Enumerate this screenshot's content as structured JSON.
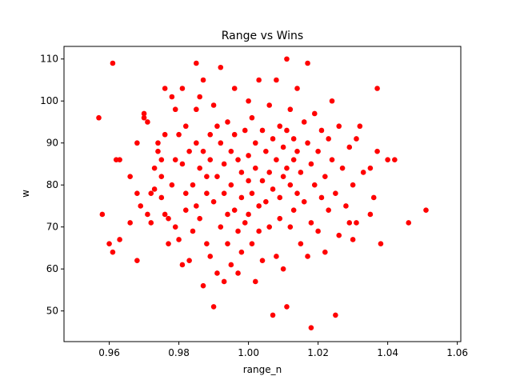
{
  "chart_data": {
    "type": "scatter",
    "title": "Range vs Wins",
    "xlabel": "range_n",
    "ylabel": "w",
    "xlim": [
      0.947,
      1.061
    ],
    "ylim": [
      42.7,
      113.0
    ],
    "xticks": [
      0.96,
      0.98,
      1.0,
      1.02,
      1.04,
      1.06
    ],
    "xtick_labels": [
      "0.96",
      "0.98",
      "1.00",
      "1.02",
      "1.04",
      "1.06"
    ],
    "yticks": [
      50,
      60,
      70,
      80,
      90,
      100,
      110
    ],
    "ytick_labels": [
      "50",
      "60",
      "70",
      "80",
      "90",
      "100",
      "110"
    ],
    "grid": false,
    "marker_color": "#ff0000",
    "series": [
      {
        "points": [
          [
            0.957,
            96
          ],
          [
            0.958,
            73
          ],
          [
            0.96,
            66
          ],
          [
            0.961,
            109
          ],
          [
            0.962,
            86
          ],
          [
            0.961,
            64
          ],
          [
            0.963,
            86
          ],
          [
            0.963,
            67
          ],
          [
            0.966,
            82
          ],
          [
            0.966,
            71
          ],
          [
            0.968,
            90
          ],
          [
            0.968,
            62
          ],
          [
            0.968,
            78
          ],
          [
            0.969,
            75
          ],
          [
            0.97,
            97
          ],
          [
            0.97,
            96
          ],
          [
            0.971,
            95
          ],
          [
            0.971,
            73
          ],
          [
            0.972,
            78
          ],
          [
            0.972,
            71
          ],
          [
            0.973,
            84
          ],
          [
            0.973,
            79
          ],
          [
            0.974,
            90
          ],
          [
            0.974,
            88
          ],
          [
            0.975,
            82
          ],
          [
            0.975,
            86
          ],
          [
            0.975,
            77
          ],
          [
            0.976,
            103
          ],
          [
            0.976,
            92
          ],
          [
            0.976,
            73
          ],
          [
            0.977,
            66
          ],
          [
            0.977,
            72
          ],
          [
            0.978,
            80
          ],
          [
            0.978,
            101
          ],
          [
            0.979,
            98
          ],
          [
            0.979,
            86
          ],
          [
            0.979,
            70
          ],
          [
            0.98,
            92
          ],
          [
            0.98,
            67
          ],
          [
            0.981,
            103
          ],
          [
            0.981,
            85
          ],
          [
            0.981,
            61
          ],
          [
            0.982,
            94
          ],
          [
            0.982,
            78
          ],
          [
            0.982,
            74
          ],
          [
            0.983,
            88
          ],
          [
            0.983,
            62
          ],
          [
            0.984,
            80
          ],
          [
            0.984,
            69
          ],
          [
            0.985,
            98
          ],
          [
            0.985,
            109
          ],
          [
            0.985,
            90
          ],
          [
            0.985,
            75
          ],
          [
            0.986,
            101
          ],
          [
            0.986,
            84
          ],
          [
            0.986,
            72
          ],
          [
            0.987,
            105
          ],
          [
            0.987,
            88
          ],
          [
            0.987,
            56
          ],
          [
            0.988,
            82
          ],
          [
            0.988,
            78
          ],
          [
            0.988,
            66
          ],
          [
            0.989,
            92
          ],
          [
            0.989,
            86
          ],
          [
            0.989,
            63
          ],
          [
            0.99,
            51
          ],
          [
            0.99,
            99
          ],
          [
            0.99,
            76
          ],
          [
            0.991,
            94
          ],
          [
            0.991,
            82
          ],
          [
            0.991,
            59
          ],
          [
            0.992,
            108
          ],
          [
            0.992,
            90
          ],
          [
            0.992,
            70
          ],
          [
            0.993,
            85
          ],
          [
            0.993,
            78
          ],
          [
            0.993,
            57
          ],
          [
            0.994,
            95
          ],
          [
            0.994,
            73
          ],
          [
            0.994,
            66
          ],
          [
            0.995,
            88
          ],
          [
            0.995,
            80
          ],
          [
            0.995,
            61
          ],
          [
            0.996,
            103
          ],
          [
            0.996,
            92
          ],
          [
            0.996,
            74
          ],
          [
            0.997,
            86
          ],
          [
            0.997,
            59
          ],
          [
            0.997,
            69
          ],
          [
            0.998,
            83
          ],
          [
            0.998,
            77
          ],
          [
            0.998,
            64
          ],
          [
            0.999,
            93
          ],
          [
            0.999,
            71
          ],
          [
            1.0,
            100
          ],
          [
            1.0,
            87
          ],
          [
            1.0,
            81
          ],
          [
            1.0,
            73
          ],
          [
            1.001,
            96
          ],
          [
            1.001,
            78
          ],
          [
            1.001,
            66
          ],
          [
            1.002,
            90
          ],
          [
            1.002,
            57
          ],
          [
            1.002,
            84
          ],
          [
            1.003,
            105
          ],
          [
            1.003,
            75
          ],
          [
            1.003,
            69
          ],
          [
            1.004,
            93
          ],
          [
            1.004,
            81
          ],
          [
            1.004,
            62
          ],
          [
            1.005,
            88
          ],
          [
            1.005,
            76
          ],
          [
            1.006,
            99
          ],
          [
            1.006,
            83
          ],
          [
            1.006,
            70
          ],
          [
            1.007,
            49
          ],
          [
            1.007,
            91
          ],
          [
            1.007,
            79
          ],
          [
            1.008,
            105
          ],
          [
            1.008,
            86
          ],
          [
            1.008,
            63
          ],
          [
            1.009,
            94
          ],
          [
            1.009,
            77
          ],
          [
            1.009,
            72
          ],
          [
            1.01,
            60
          ],
          [
            1.01,
            89
          ],
          [
            1.01,
            82
          ],
          [
            1.011,
            110
          ],
          [
            1.011,
            93
          ],
          [
            1.011,
            84
          ],
          [
            1.011,
            51
          ],
          [
            1.012,
            98
          ],
          [
            1.012,
            80
          ],
          [
            1.012,
            70
          ],
          [
            1.013,
            91
          ],
          [
            1.013,
            86
          ],
          [
            1.013,
            74
          ],
          [
            1.014,
            103
          ],
          [
            1.014,
            88
          ],
          [
            1.014,
            78
          ],
          [
            1.015,
            83
          ],
          [
            1.015,
            66
          ],
          [
            1.016,
            95
          ],
          [
            1.016,
            76
          ],
          [
            1.017,
            109
          ],
          [
            1.017,
            90
          ],
          [
            1.017,
            63
          ],
          [
            1.018,
            46
          ],
          [
            1.018,
            85
          ],
          [
            1.018,
            71
          ],
          [
            1.019,
            97
          ],
          [
            1.019,
            80
          ],
          [
            1.02,
            88
          ],
          [
            1.02,
            69
          ],
          [
            1.021,
            77
          ],
          [
            1.021,
            93
          ],
          [
            1.022,
            82
          ],
          [
            1.022,
            64
          ],
          [
            1.023,
            91
          ],
          [
            1.023,
            74
          ],
          [
            1.024,
            100
          ],
          [
            1.024,
            86
          ],
          [
            1.025,
            49
          ],
          [
            1.025,
            78
          ],
          [
            1.026,
            94
          ],
          [
            1.026,
            68
          ],
          [
            1.027,
            84
          ],
          [
            1.028,
            75
          ],
          [
            1.029,
            89
          ],
          [
            1.029,
            71
          ],
          [
            1.03,
            80
          ],
          [
            1.03,
            67
          ],
          [
            1.031,
            91
          ],
          [
            1.031,
            71
          ],
          [
            1.032,
            94
          ],
          [
            1.033,
            83
          ],
          [
            1.035,
            73
          ],
          [
            1.035,
            84
          ],
          [
            1.036,
            77
          ],
          [
            1.037,
            103
          ],
          [
            1.037,
            88
          ],
          [
            1.038,
            66
          ],
          [
            1.04,
            86
          ],
          [
            1.042,
            86
          ],
          [
            1.046,
            71
          ],
          [
            1.051,
            74
          ]
        ]
      }
    ]
  }
}
